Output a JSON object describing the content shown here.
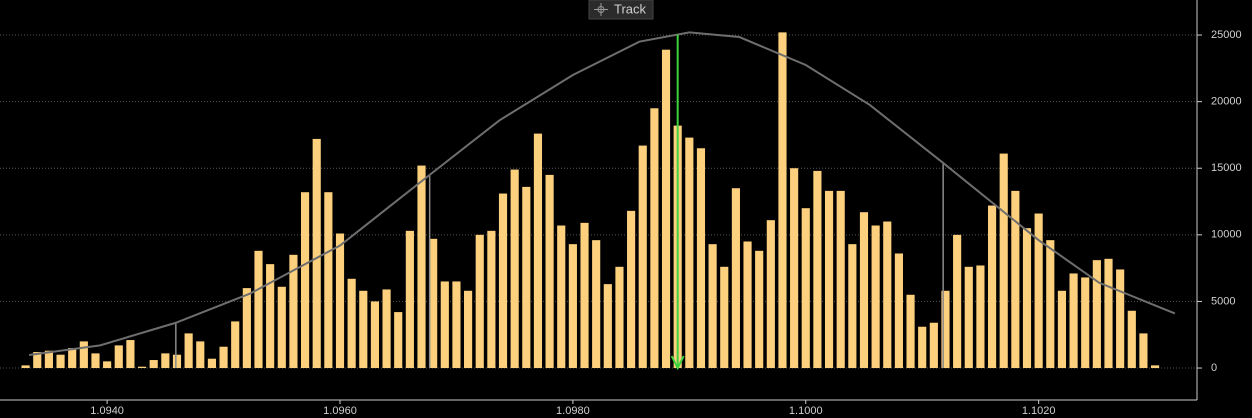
{
  "chart_data": {
    "type": "histogram",
    "button": "Track",
    "bins": [
      1.09325,
      1.09335,
      1.09345,
      1.09355,
      1.09365,
      1.09375,
      1.09385,
      1.09395,
      1.09405,
      1.09415,
      1.09425,
      1.09435,
      1.09445,
      1.09455,
      1.09465,
      1.09475,
      1.09485,
      1.09495,
      1.09505,
      1.09515,
      1.09525,
      1.09535,
      1.09545,
      1.09555,
      1.09565,
      1.09575,
      1.09585,
      1.09595,
      1.09605,
      1.09615,
      1.09625,
      1.09635,
      1.09645,
      1.09655,
      1.09665,
      1.09675,
      1.09685,
      1.09695,
      1.09705,
      1.09715,
      1.09725,
      1.09735,
      1.09745,
      1.09755,
      1.09765,
      1.09775,
      1.09785,
      1.09795,
      1.09805,
      1.09815,
      1.09825,
      1.09835,
      1.09845,
      1.09855,
      1.09865,
      1.09875,
      1.09885,
      1.09895,
      1.09905,
      1.09915,
      1.09925,
      1.09935,
      1.09945,
      1.09955,
      1.09965,
      1.09975,
      1.09985,
      1.09995,
      1.10005,
      1.10015,
      1.10025,
      1.10035,
      1.10045,
      1.10055,
      1.10065,
      1.10075,
      1.10085,
      1.10095,
      1.10105,
      1.10115,
      1.10125,
      1.10135,
      1.10145,
      1.10155,
      1.10165,
      1.10175,
      1.10185,
      1.10195,
      1.10205,
      1.10215,
      1.10225,
      1.10235,
      1.10245,
      1.10255,
      1.10265,
      1.10275,
      1.10285,
      1.10295,
      1.10305
    ],
    "values": [
      200,
      1200,
      1300,
      1000,
      1500,
      2000,
      1100,
      500,
      1700,
      2100,
      100,
      600,
      1100,
      1000,
      2600,
      2000,
      700,
      1600,
      3500,
      6000,
      8800,
      7800,
      6100,
      8500,
      13200,
      17200,
      13200,
      10100,
      6700,
      5800,
      5000,
      5900,
      4200,
      10300,
      15200,
      9700,
      6500,
      6500,
      5800,
      10000,
      10300,
      13100,
      14900,
      13600,
      17600,
      14500,
      10700,
      9300,
      10900,
      9600,
      6300,
      7600,
      11800,
      16700,
      19500,
      23900,
      18200,
      17300,
      16500,
      9300,
      7600,
      13500,
      9500,
      8800,
      11100,
      25200,
      15000,
      12000,
      14800,
      13300,
      13300,
      9300,
      11700,
      10700,
      11000,
      8600,
      5500,
      3100,
      3400,
      5800,
      10000,
      7600,
      7700,
      12200,
      16100,
      13300,
      10500,
      11600,
      9600,
      5800,
      7100,
      6800,
      8100,
      8200,
      7400,
      4300,
      2600,
      200
    ],
    "color": "#fdd07e",
    "curve": {
      "color": "#6e6e6e",
      "x": [
        1.09333,
        1.09394,
        1.09459,
        1.09523,
        1.096,
        1.09677,
        1.09737,
        1.098,
        1.09857,
        1.099,
        1.09943,
        1.1,
        1.10055,
        1.10118,
        1.102,
        1.10252,
        1.10317
      ],
      "values": [
        980,
        1700,
        3400,
        5600,
        9200,
        14500,
        18600,
        22000,
        24500,
        25200,
        24850,
        22750,
        19750,
        15400,
        9600,
        6400,
        4100
      ]
    },
    "reference_lines": [
      1.09459,
      1.09677,
      1.10118
    ],
    "marker_x": 1.0989,
    "marker_color": "#3fd23f",
    "xlim": [
      1.09308,
      1.10336
    ],
    "ylim": [
      -2400,
      27630
    ],
    "xticks": [
      {
        "value": 1.094,
        "label": "1.0940"
      },
      {
        "value": 1.096,
        "label": "1.0960"
      },
      {
        "value": 1.098,
        "label": "1.0980"
      },
      {
        "value": 1.1,
        "label": "1.1000"
      },
      {
        "value": 1.102,
        "label": "1.1020"
      }
    ],
    "yticks": [
      0,
      5000,
      10000,
      15000,
      20000,
      25000
    ],
    "grid": true
  }
}
